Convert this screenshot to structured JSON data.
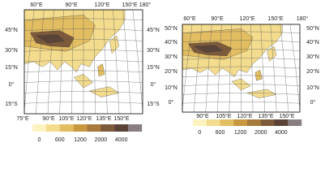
{
  "panels": [
    {
      "top_labels": [
        "60°E",
        "90°E",
        "120°E",
        "150°E",
        "180°"
      ],
      "left_labels": [
        "45°N",
        "30°N",
        "15°N",
        "0°",
        "15°S"
      ],
      "right_labels": [
        "45°N",
        "30°N",
        "15°N",
        "0°",
        "15°S"
      ],
      "bottom_labels": [
        "75°E",
        "90°E",
        "105°E",
        "120°E",
        "135°E",
        "150°E"
      ],
      "colorbar_labels": [
        0,
        600,
        1200,
        2000,
        4000
      ]
    },
    {
      "top_labels": [
        "60°E",
        "90°E",
        "120°E",
        "150°E",
        "180°"
      ],
      "left_labels": [
        "50°N",
        "40°N",
        "30°N",
        "20°N",
        "10°N",
        "0°"
      ],
      "right_labels": [
        "50°N",
        "40°N",
        "30°N",
        "20°N",
        "10°N",
        "0°"
      ],
      "bottom_labels": [
        "90°E",
        "105°E",
        "120°E",
        "135°E",
        "150°E"
      ],
      "colorbar_labels": [
        0,
        600,
        1200,
        2000,
        4000
      ]
    }
  ]
}
